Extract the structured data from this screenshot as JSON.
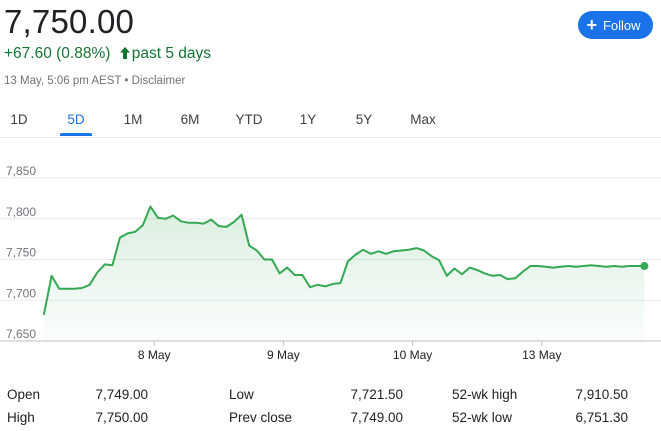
{
  "quote": {
    "price": "7,750.00",
    "change": "+67.60 (0.88%)",
    "period": "past 5 days",
    "timestamp": "13 May, 5:06 pm AEST",
    "separator": "•",
    "disclaimer": "Disclaimer",
    "color_up": "#137333"
  },
  "follow_button": {
    "label": "Follow",
    "icon": "plus-icon",
    "color": "#1a73e8"
  },
  "tabs": [
    {
      "label": "1D",
      "active": false
    },
    {
      "label": "5D",
      "active": true
    },
    {
      "label": "1M",
      "active": false
    },
    {
      "label": "6M",
      "active": false
    },
    {
      "label": "YTD",
      "active": false
    },
    {
      "label": "1Y",
      "active": false
    },
    {
      "label": "5Y",
      "active": false
    },
    {
      "label": "Max",
      "active": false
    }
  ],
  "chart_data": {
    "type": "area",
    "title": "",
    "xlabel": "",
    "ylabel": "",
    "ylim": [
      7650,
      7850
    ],
    "y_ticks": [
      "7,850",
      "7,800",
      "7,750",
      "7,700",
      "7,650"
    ],
    "y_tick_values": [
      7850,
      7800,
      7750,
      7700,
      7650
    ],
    "x_tick_labels": [
      "8 May",
      "9 May",
      "10 May",
      "13 May"
    ],
    "x_tick_positions": [
      14.5,
      31.5,
      48.5,
      65.5
    ],
    "x_range": [
      0,
      80
    ],
    "line_color": "#34a853",
    "grid": true,
    "series": [
      {
        "x": [
          0,
          1,
          2,
          3,
          4,
          5,
          6,
          7,
          8,
          9,
          10,
          11,
          12,
          13,
          14,
          15,
          16,
          17,
          18,
          19,
          20,
          21,
          22,
          23,
          24,
          25,
          26,
          27,
          28,
          29,
          30,
          31,
          32,
          33,
          34,
          35,
          36,
          37,
          38,
          39,
          40,
          41,
          42,
          43,
          44,
          45,
          46,
          47,
          48,
          49,
          50,
          51,
          52,
          53,
          54,
          55,
          56,
          57,
          58,
          59,
          60,
          61,
          62,
          63,
          64,
          65,
          66,
          67,
          68,
          69,
          70,
          71,
          72,
          73,
          74,
          75,
          76,
          77,
          78,
          79
        ],
        "y": [
          7683,
          7730,
          7714,
          7714,
          7714,
          7715,
          7719,
          7734,
          7744,
          7743,
          7777,
          7782,
          7784,
          7792,
          7815,
          7801,
          7800,
          7804,
          7797,
          7795,
          7795,
          7794,
          7799,
          7791,
          7790,
          7796,
          7805,
          7767,
          7761,
          7750,
          7750,
          7733,
          7740,
          7731,
          7731,
          7716,
          7719,
          7717,
          7720,
          7721,
          7748,
          7756,
          7762,
          7757,
          7760,
          7757,
          7760,
          7761,
          7762,
          7764,
          7761,
          7754,
          7749,
          7730,
          7739,
          7732,
          7740,
          7737,
          7733,
          7730,
          7731,
          7726,
          7727,
          7735,
          7742,
          7742,
          7741,
          7740,
          7741,
          7742,
          7741,
          7742,
          7743,
          7742,
          7741,
          7742,
          7741,
          7742,
          7742,
          7742
        ],
        "end_point": 7742
      }
    ]
  },
  "stats": [
    {
      "label": "Open",
      "value": "7,749.00"
    },
    {
      "label": "Low",
      "value": "7,721.50"
    },
    {
      "label": "52-wk high",
      "value": "7,910.50"
    },
    {
      "label": "High",
      "value": "7,750.00"
    },
    {
      "label": "Prev close",
      "value": "7,749.00"
    },
    {
      "label": "52-wk low",
      "value": "6,751.30"
    }
  ]
}
